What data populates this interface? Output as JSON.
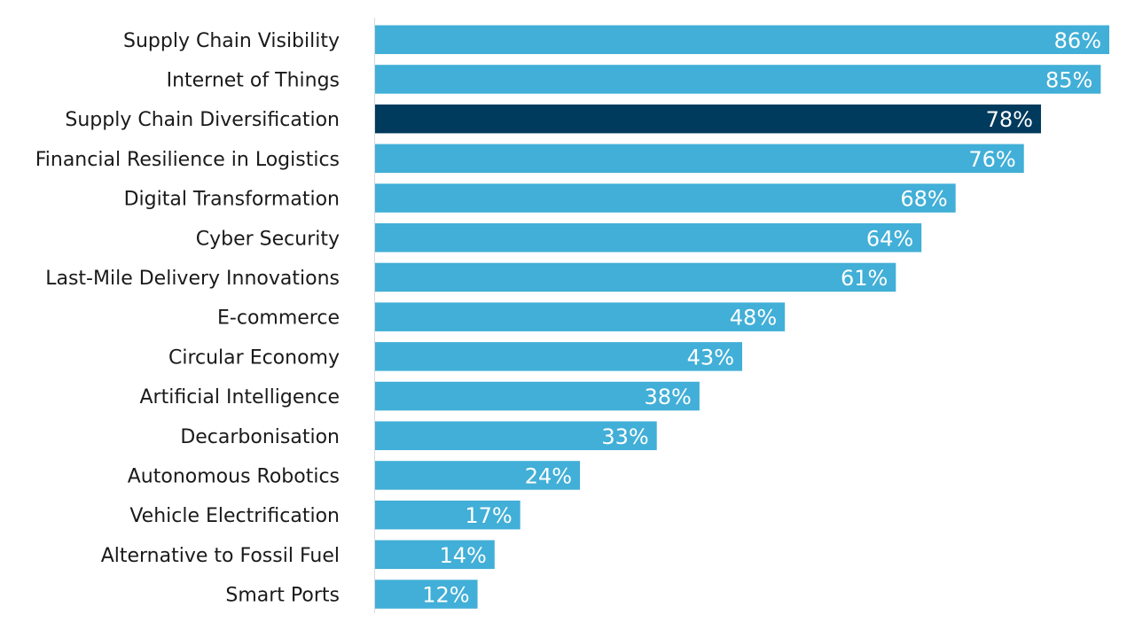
{
  "chart_data": {
    "type": "bar",
    "orientation": "horizontal",
    "title": "",
    "xlabel": "",
    "ylabel": "",
    "xlim": [
      0,
      86
    ],
    "grid": false,
    "legend": "none",
    "categories": [
      "Supply Chain Visibility",
      "Internet of Things",
      "Supply Chain Diversification",
      "Financial Resilience in Logistics",
      "Digital Transformation",
      "Cyber Security",
      "Last-Mile Delivery Innovations",
      "E-commerce",
      "Circular Economy",
      "Artificial Intelligence",
      "Decarbonisation",
      "Autonomous Robotics",
      "Vehicle Electrification",
      "Alternative to Fossil Fuel",
      "Smart Ports"
    ],
    "values": [
      86,
      85,
      78,
      76,
      68,
      64,
      61,
      48,
      43,
      38,
      33,
      24,
      17,
      14,
      12
    ],
    "value_labels": [
      "86%",
      "85%",
      "78%",
      "76%",
      "68%",
      "64%",
      "61%",
      "48%",
      "43%",
      "38%",
      "33%",
      "24%",
      "17%",
      "14%",
      "12%"
    ],
    "highlighted": "Supply Chain Diversification",
    "colors": {
      "bar": "#41afd7",
      "highlight": "#003a5d",
      "axis": "#d9d9d9"
    }
  }
}
